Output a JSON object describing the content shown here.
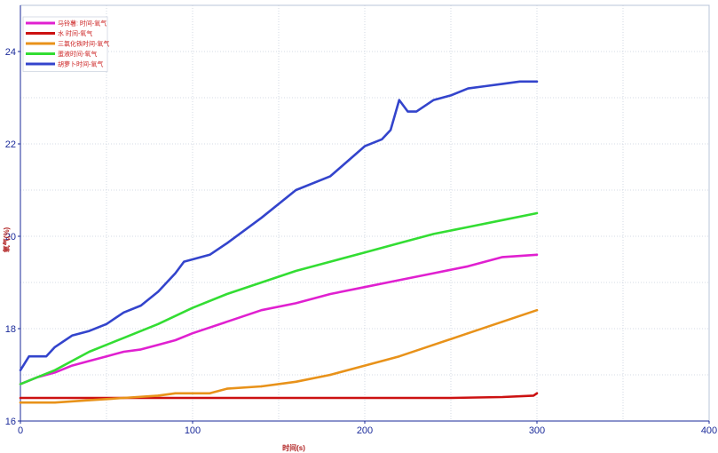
{
  "chart_data": {
    "type": "line",
    "title": "",
    "xlabel": "时间(s)",
    "ylabel": "氧气(%)",
    "xlim": [
      0,
      400
    ],
    "ylim": [
      16,
      25
    ],
    "xticks": [
      0,
      100,
      200,
      300,
      400
    ],
    "yticks": [
      16,
      18,
      20,
      22,
      24
    ],
    "grid": true,
    "legend_position": "top-left",
    "series": [
      {
        "name": "马铃薯: 时间-氧气",
        "color": "#e020d0",
        "x": [
          0,
          10,
          20,
          30,
          40,
          50,
          60,
          70,
          80,
          90,
          100,
          120,
          140,
          160,
          180,
          200,
          220,
          240,
          260,
          280,
          300
        ],
        "y": [
          16.8,
          16.95,
          17.05,
          17.2,
          17.3,
          17.4,
          17.5,
          17.55,
          17.65,
          17.75,
          17.9,
          18.15,
          18.4,
          18.55,
          18.75,
          18.9,
          19.05,
          19.2,
          19.35,
          19.55,
          19.6
        ]
      },
      {
        "name": "水 时间-氧气",
        "color": "#cc1111",
        "x": [
          0,
          20,
          40,
          60,
          100,
          150,
          200,
          250,
          280,
          298,
          300
        ],
        "y": [
          16.5,
          16.5,
          16.5,
          16.5,
          16.5,
          16.5,
          16.5,
          16.5,
          16.52,
          16.55,
          16.6
        ]
      },
      {
        "name": "三氯化铁时间-氧气",
        "color": "#e8921a",
        "x": [
          0,
          20,
          40,
          60,
          80,
          90,
          110,
          120,
          140,
          160,
          180,
          200,
          220,
          240,
          260,
          280,
          300
        ],
        "y": [
          16.4,
          16.4,
          16.45,
          16.5,
          16.55,
          16.6,
          16.6,
          16.7,
          16.75,
          16.85,
          17.0,
          17.2,
          17.4,
          17.65,
          17.9,
          18.15,
          18.4
        ]
      },
      {
        "name": "蛋液时间-氧气",
        "color": "#33dd33",
        "x": [
          0,
          10,
          20,
          30,
          40,
          50,
          60,
          80,
          100,
          120,
          140,
          160,
          180,
          200,
          220,
          240,
          260,
          280,
          300
        ],
        "y": [
          16.8,
          16.95,
          17.1,
          17.3,
          17.5,
          17.65,
          17.8,
          18.1,
          18.45,
          18.75,
          19.0,
          19.25,
          19.45,
          19.65,
          19.85,
          20.05,
          20.2,
          20.35,
          20.5
        ]
      },
      {
        "name": "胡萝卜时间-氧气",
        "color": "#3344cc",
        "x": [
          0,
          5,
          10,
          15,
          20,
          30,
          40,
          50,
          60,
          70,
          80,
          90,
          95,
          100,
          110,
          120,
          140,
          160,
          180,
          200,
          210,
          215,
          220,
          225,
          230,
          240,
          250,
          260,
          270,
          280,
          290,
          300
        ],
        "y": [
          17.1,
          17.4,
          17.4,
          17.4,
          17.6,
          17.85,
          17.95,
          18.1,
          18.35,
          18.5,
          18.8,
          19.2,
          19.45,
          19.5,
          19.6,
          19.85,
          20.4,
          21.0,
          21.3,
          21.95,
          22.1,
          22.3,
          22.95,
          22.7,
          22.7,
          22.95,
          23.05,
          23.2,
          23.25,
          23.3,
          23.35,
          23.35
        ]
      }
    ]
  }
}
